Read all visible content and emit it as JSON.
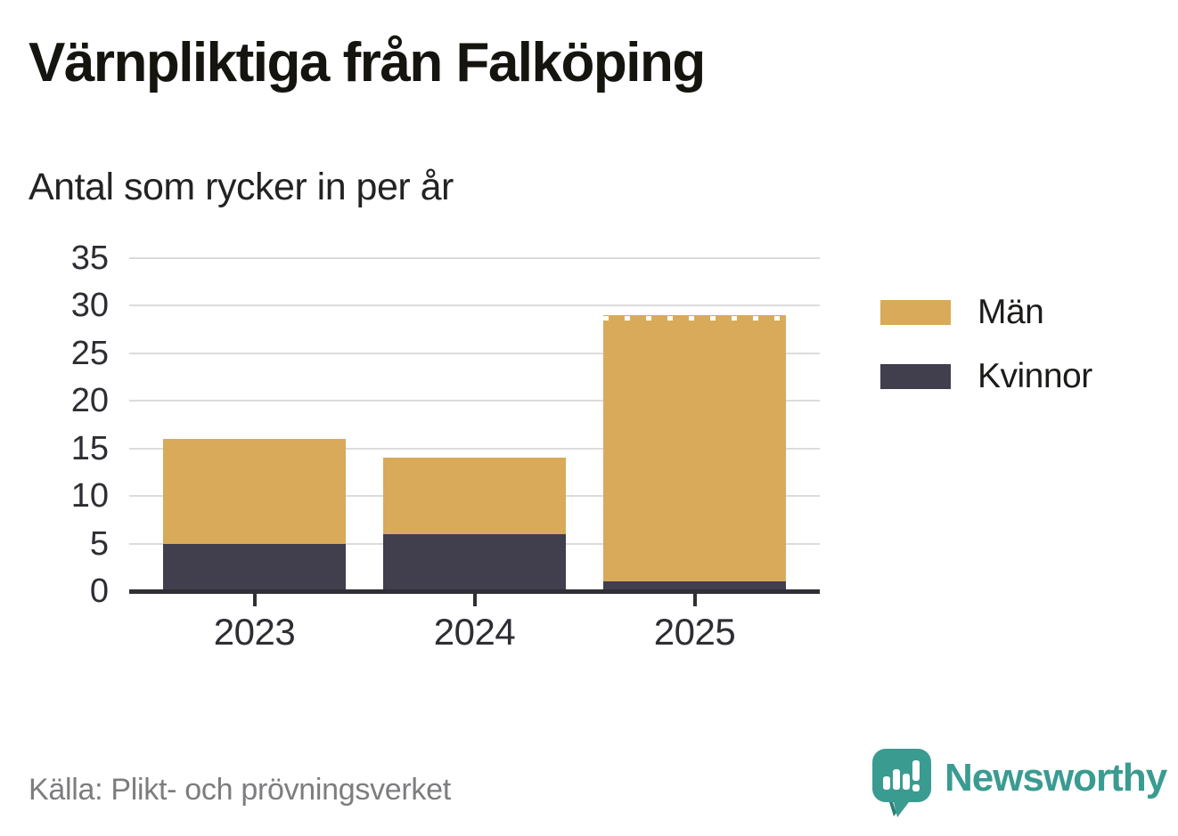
{
  "header": {
    "title": "Värnpliktiga från Falköping",
    "subtitle": "Antal som rycker in per år"
  },
  "chart_data": {
    "type": "bar",
    "stacked": true,
    "categories": [
      "2023",
      "2024",
      "2025"
    ],
    "series": [
      {
        "name": "Kvinnor",
        "color": "#413E4E",
        "values": [
          5,
          6,
          1
        ]
      },
      {
        "name": "Män",
        "color": "#D8AA5A",
        "values": [
          11,
          8,
          28
        ]
      }
    ],
    "stack_totals": [
      16,
      14,
      29
    ],
    "legend_order": [
      "Män",
      "Kvinnor"
    ],
    "legend_position": "right",
    "title": "Värnpliktiga från Falköping",
    "subtitle": "Antal som rycker in per år",
    "xlabel": "",
    "ylabel": "",
    "ylim": [
      0,
      35
    ],
    "yticks": [
      0,
      5,
      10,
      15,
      20,
      25,
      30,
      35
    ],
    "grid": "horizontal",
    "dashed_top_category": "2025"
  },
  "footer": {
    "source": "Källa: Plikt- och prövningsverket",
    "brand": "Newsworthy"
  },
  "colors": {
    "men": "#D8AA5A",
    "women": "#413E4E",
    "axis": "#302F36",
    "gridline": "#DCDCDC",
    "source_text": "#7D7D80",
    "brand_teal": "#3A9B91"
  }
}
